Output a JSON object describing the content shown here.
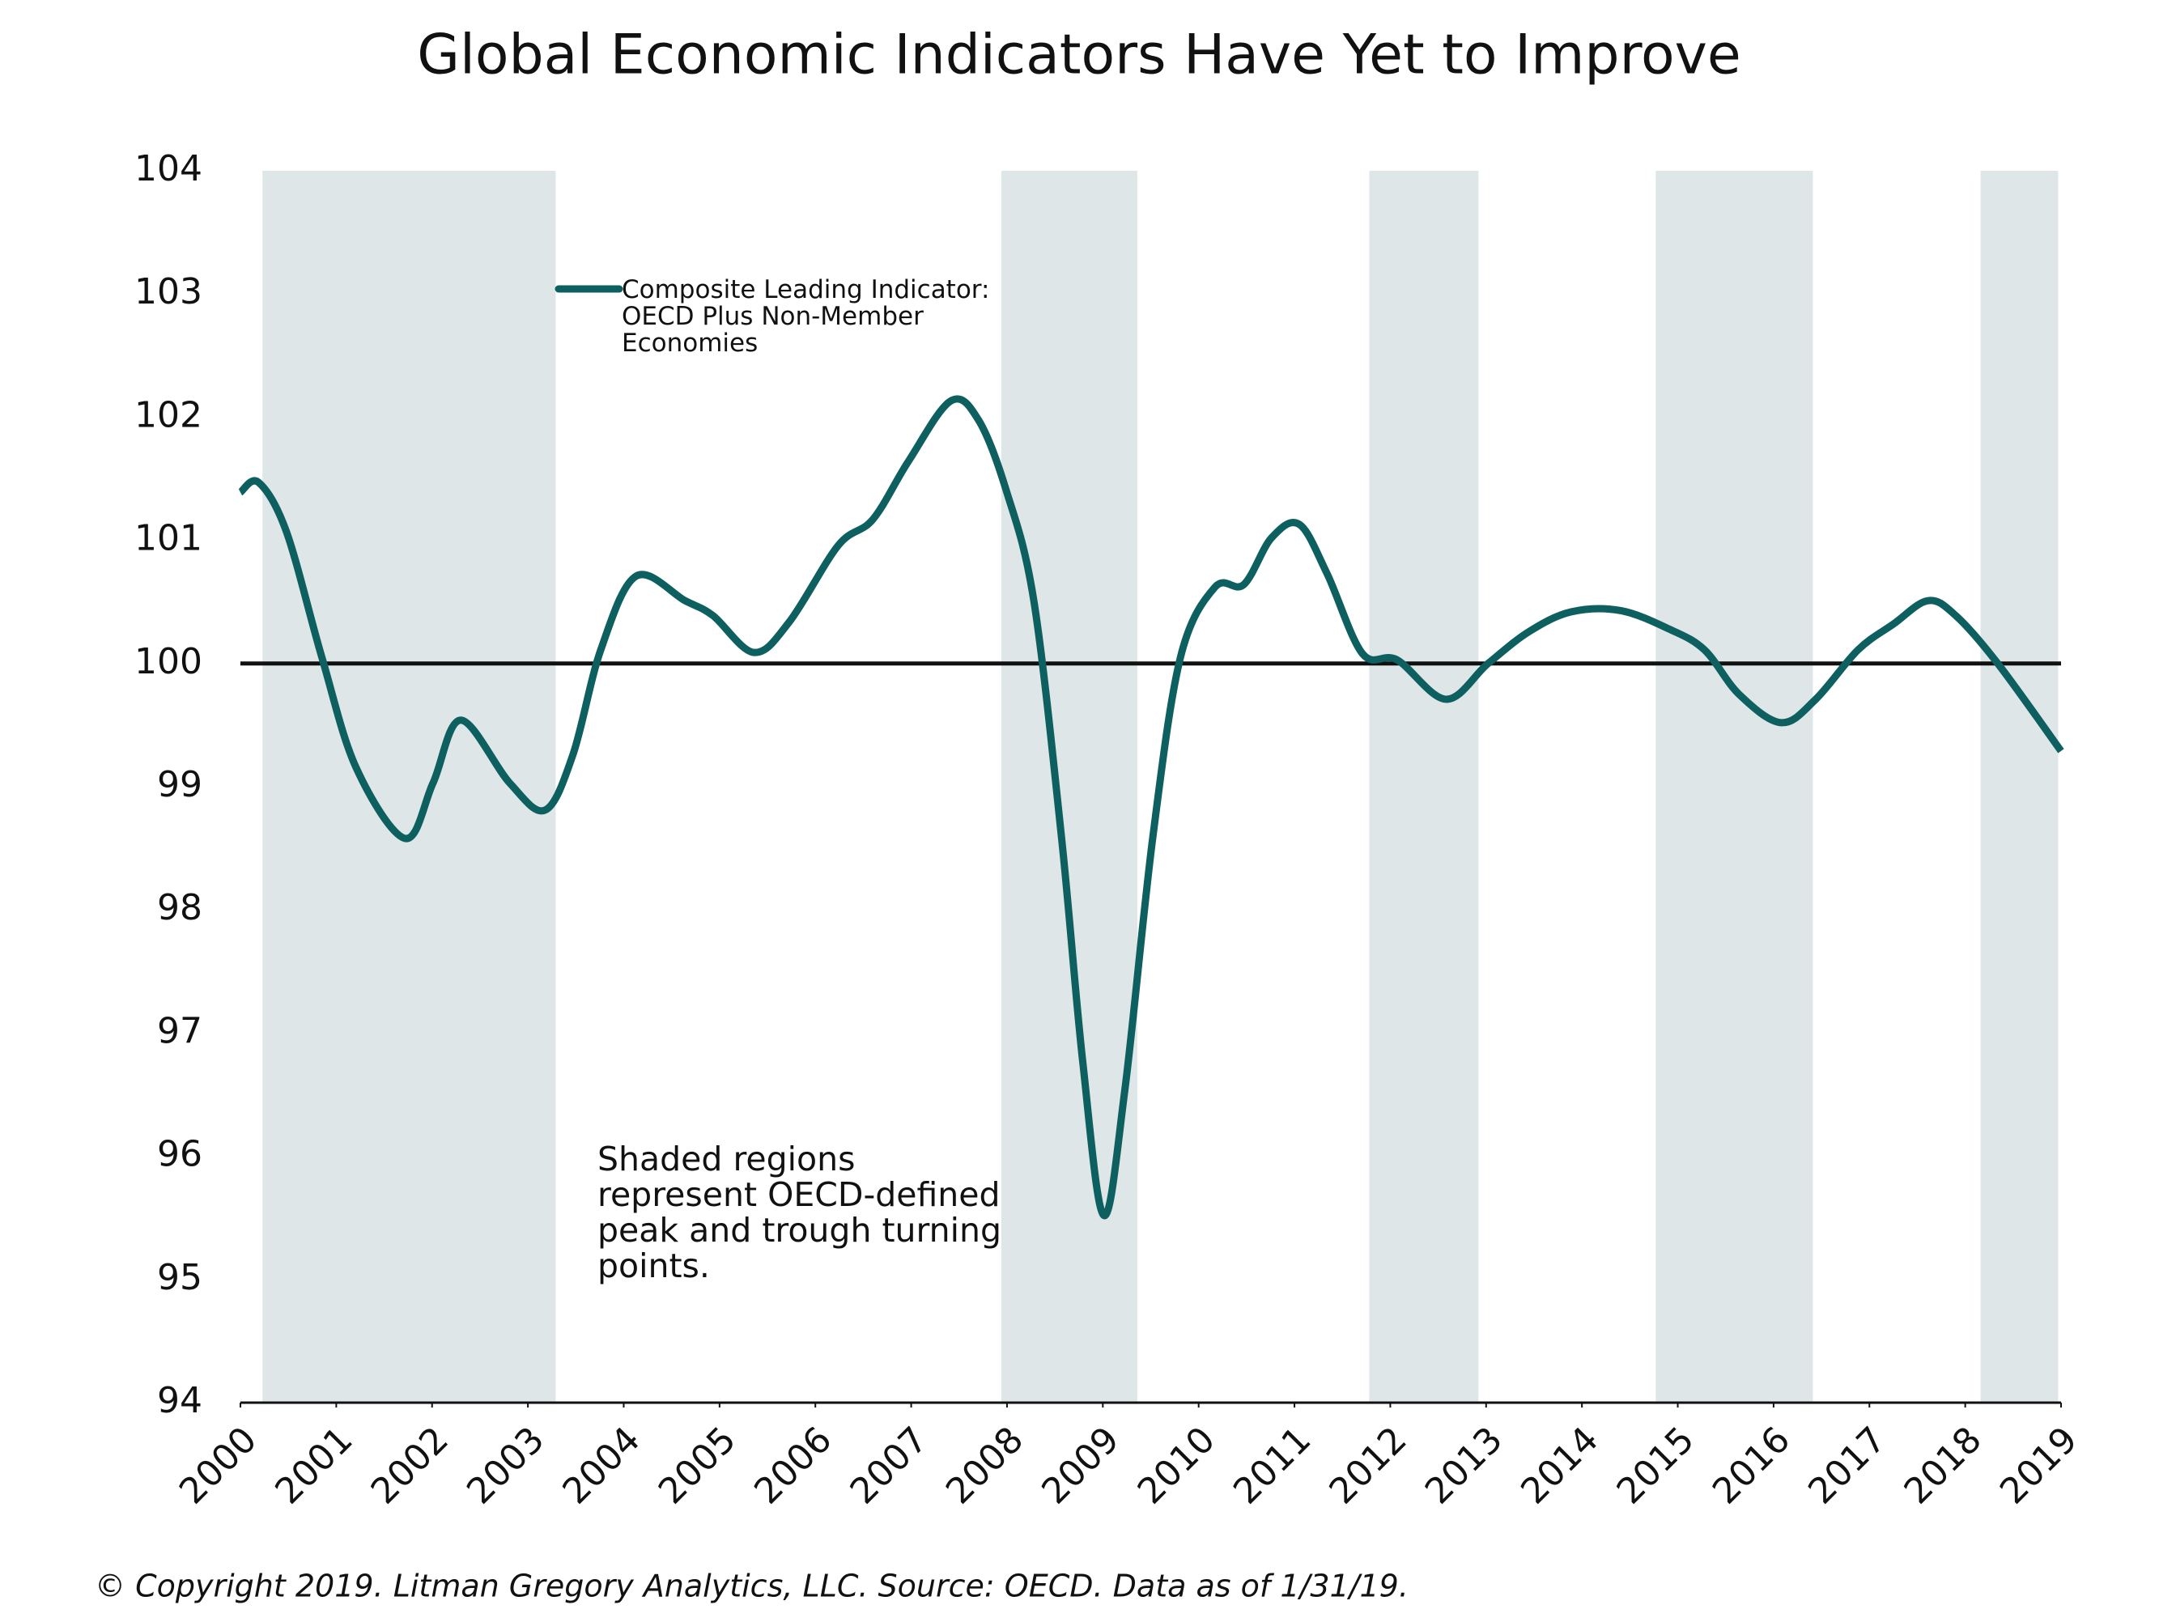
{
  "chart_data": {
    "type": "line",
    "title": "Global Economic Indicators Have Yet to Improve",
    "annotation": "Shaded regions represent OECD-defined peak and trough turning points.",
    "footnote": "© Copyright 2019. Litman Gregory Analytics, LLC. Source: OECD. Data as of 1/31/19.",
    "xlim": [
      2000,
      2019
    ],
    "xticks": [
      2000,
      2001,
      2002,
      2003,
      2004,
      2005,
      2006,
      2007,
      2008,
      2009,
      2010,
      2011,
      2012,
      2013,
      2014,
      2015,
      2016,
      2017,
      2018,
      2019
    ],
    "ylim": [
      94,
      104
    ],
    "yticks": [
      94,
      95,
      96,
      97,
      98,
      99,
      100,
      101,
      102,
      103,
      104
    ],
    "reference_line": 100,
    "shaded_regions": [
      [
        2000.23,
        2003.29
      ],
      [
        2007.94,
        2009.36
      ],
      [
        2011.78,
        2012.92
      ],
      [
        2014.77,
        2016.41
      ],
      [
        2018.16,
        2018.97
      ]
    ],
    "shade_color": "#dfe6e7",
    "series": [
      {
        "name": "Composite Leading Indicator: OECD Plus Non-Member Economies",
        "color": "#0e5f5f",
        "x": [
          2000,
          2000.19,
          2000.48,
          2000.85,
          2001.21,
          2001.72,
          2002.01,
          2002.3,
          2002.81,
          2003.18,
          2003.47,
          2003.76,
          2004.13,
          2004.64,
          2004.93,
          2005.36,
          2005.73,
          2006.24,
          2006.6,
          2006.97,
          2007.41,
          2007.7,
          2007.99,
          2008.28,
          2008.57,
          2008.79,
          2009.01,
          2009.23,
          2009.52,
          2009.81,
          2010.17,
          2010.47,
          2010.76,
          2011.05,
          2011.34,
          2011.71,
          2012.07,
          2012.58,
          2013.02,
          2013.45,
          2013.89,
          2014.4,
          2014.91,
          2015.28,
          2015.64,
          2016.08,
          2016.44,
          2016.88,
          2017.25,
          2017.61,
          2017.9,
          2018.34,
          2019
        ],
        "values": [
          101.39,
          101.47,
          101.07,
          100.05,
          99.15,
          98.58,
          99.03,
          99.54,
          99.03,
          98.81,
          99.26,
          100.11,
          100.71,
          100.51,
          100.39,
          100.09,
          100.34,
          100.96,
          101.17,
          101.64,
          102.13,
          101.98,
          101.41,
          100.51,
          98.58,
          96.77,
          95.52,
          96.54,
          98.58,
          100.05,
          100.62,
          100.64,
          101.02,
          101.13,
          100.73,
          100.08,
          100.03,
          99.71,
          100.0,
          100.26,
          100.42,
          100.43,
          100.28,
          100.11,
          99.75,
          99.52,
          99.71,
          100.11,
          100.32,
          100.51,
          100.39,
          100.0,
          99.29
        ]
      }
    ]
  }
}
